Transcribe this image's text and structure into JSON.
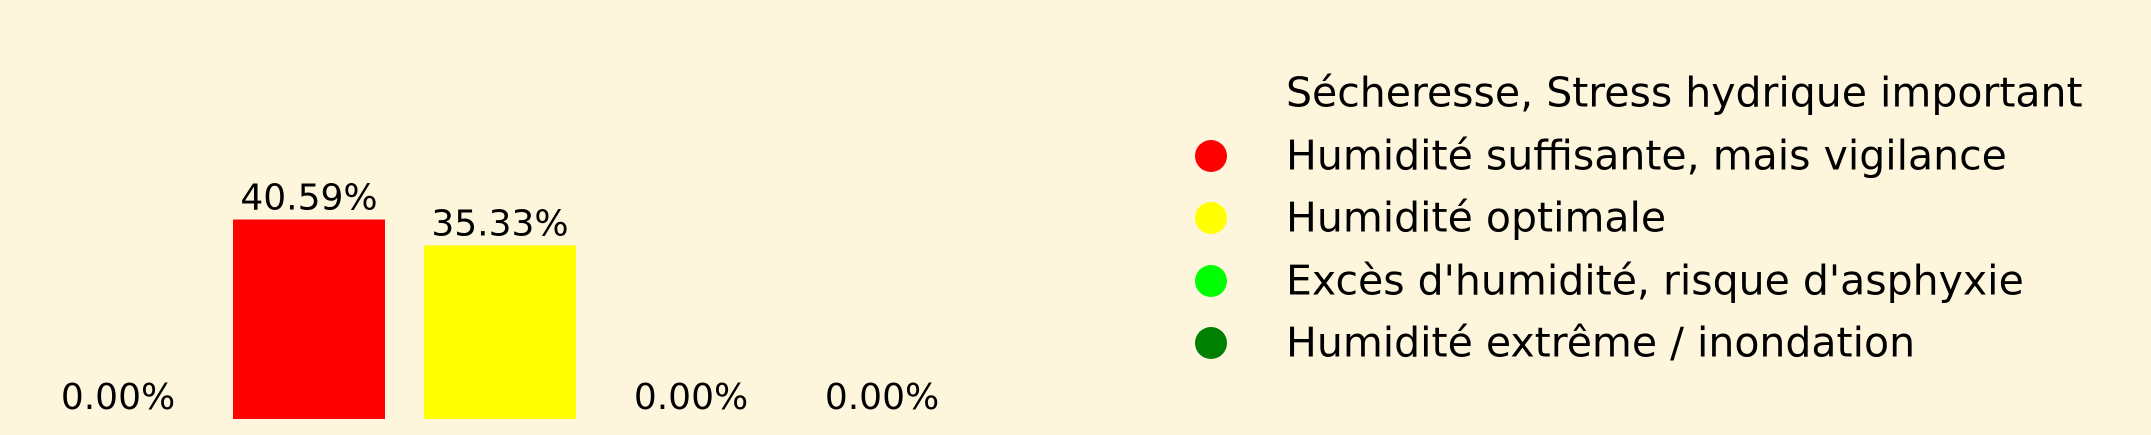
{
  "chart_data": {
    "type": "bar",
    "categories": [
      "Sécheresse, Stress hydrique important",
      "Humidité suffisante, mais vigilance",
      "Humidité optimale",
      "Excès d'humidité, risque d'asphyxie",
      "Humidité extrême / inondation"
    ],
    "values": [
      0.0,
      40.59,
      35.33,
      0.0,
      0.0
    ],
    "data_labels": [
      "0.00%",
      "40.59%",
      "35.33%",
      "0.00%",
      "0.00%"
    ],
    "colors": [
      "#FDF6DC",
      "#FF0000",
      "#FFFF00",
      "#00FF00",
      "#008000"
    ],
    "ylim": [
      0,
      70
    ],
    "grid": false,
    "legend_position": "right"
  }
}
